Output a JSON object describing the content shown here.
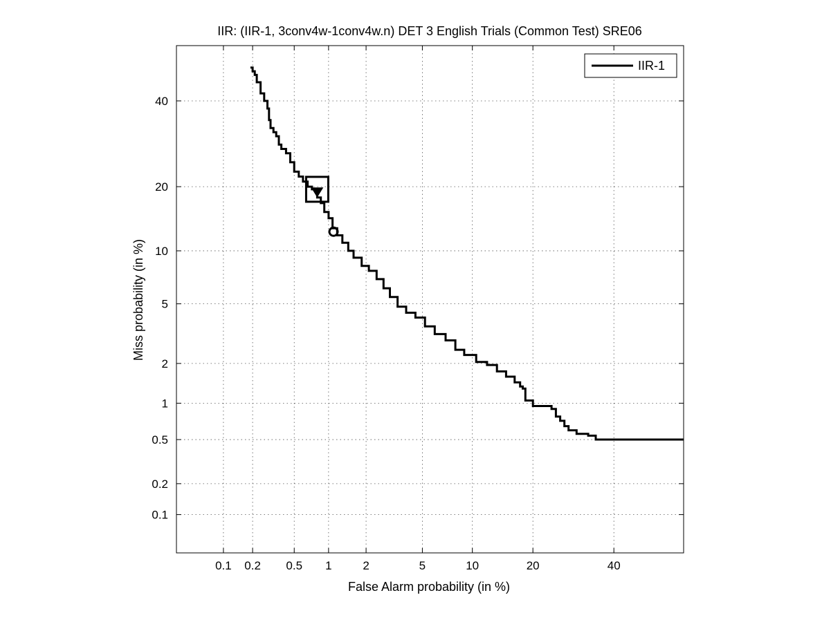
{
  "chart_data": {
    "type": "line",
    "title": "IIR: (IIR-1, 3conv4w-1conv4w.n) DET 3 English Trials (Common Test) SRE06",
    "xlabel": "False Alarm probability (in %)",
    "ylabel": "Miss probability (in %)",
    "scale": "normal-deviate (probit) on both axes",
    "xlim": [
      0.03,
      60
    ],
    "ylim": [
      0.04,
      55
    ],
    "xticks": [
      0.1,
      0.2,
      0.5,
      1,
      2,
      5,
      10,
      20,
      40
    ],
    "xtick_labels": [
      "0.1",
      "0.2",
      "0.5",
      "1",
      "2",
      "5",
      "10",
      "20",
      "40"
    ],
    "yticks": [
      0.1,
      0.2,
      0.5,
      1,
      2,
      5,
      10,
      20,
      40
    ],
    "ytick_labels": [
      "0.1",
      "0.2",
      "0.5",
      "1",
      "2",
      "5",
      "10",
      "20",
      "40"
    ],
    "grid": true,
    "legend_position": "top-right",
    "series": [
      {
        "name": "IIR-1",
        "color": "#000000",
        "x": [
          0.19,
          0.2,
          0.21,
          0.22,
          0.24,
          0.26,
          0.28,
          0.29,
          0.3,
          0.32,
          0.34,
          0.36,
          0.38,
          0.42,
          0.46,
          0.5,
          0.55,
          0.6,
          0.66,
          0.72,
          0.8,
          0.86,
          0.92,
          1.0,
          1.08,
          1.18,
          1.3,
          1.45,
          1.6,
          1.85,
          2.1,
          2.4,
          2.7,
          3.0,
          3.4,
          3.9,
          4.5,
          5.2,
          6.0,
          7.0,
          8.0,
          9.0,
          10.5,
          12.0,
          13.5,
          15.0,
          16.5,
          17.5,
          18.0,
          18.5,
          20.0,
          22.0,
          24.0,
          25.0,
          26.0,
          27.0,
          28.0,
          30.0,
          33.0,
          35.0,
          40.0,
          50.0,
          60.0
        ],
        "y": [
          49,
          48,
          47,
          45,
          42,
          40,
          38,
          35,
          33,
          32,
          31,
          29,
          28,
          27,
          25,
          23,
          22,
          21,
          20,
          19.5,
          18,
          17,
          15.5,
          14.5,
          13,
          12,
          11,
          10,
          9.2,
          8.3,
          7.8,
          7.0,
          6.2,
          5.5,
          4.8,
          4.4,
          4.1,
          3.6,
          3.2,
          2.9,
          2.5,
          2.3,
          2.05,
          1.95,
          1.75,
          1.6,
          1.45,
          1.35,
          1.3,
          1.05,
          0.95,
          0.95,
          0.9,
          0.78,
          0.72,
          0.65,
          0.6,
          0.56,
          0.54,
          0.5,
          0.5,
          0.5,
          0.5
        ]
      }
    ],
    "markers": [
      {
        "shape": "square",
        "x": 0.8,
        "y": 19.5
      },
      {
        "shape": "triangle-down",
        "x": 0.8,
        "y": 19.0
      },
      {
        "shape": "circle",
        "x": 1.1,
        "y": 12.5
      }
    ]
  }
}
